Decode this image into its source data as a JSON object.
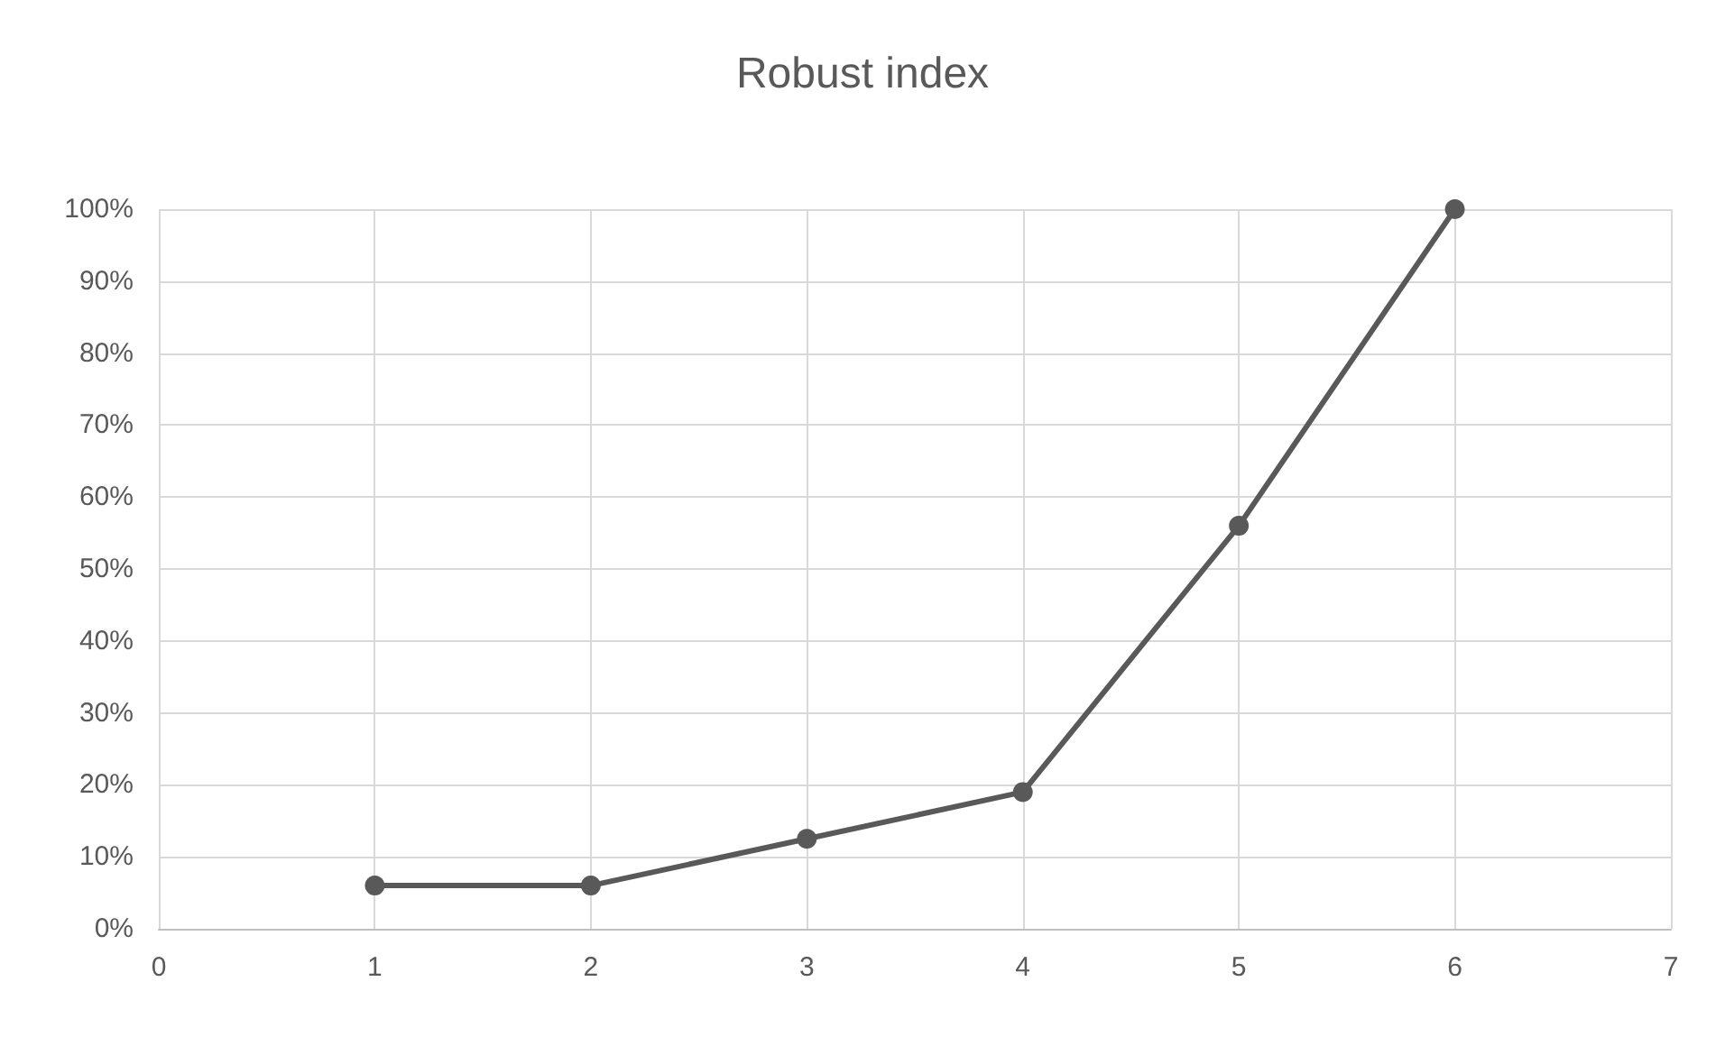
{
  "chart_data": {
    "type": "line",
    "title": "Robust index",
    "x": [
      1,
      2,
      3,
      4,
      5,
      6
    ],
    "series": [
      {
        "color": "#595959",
        "values": [
          6,
          6,
          12.5,
          19,
          56,
          100
        ]
      }
    ],
    "xlim": [
      0,
      7
    ],
    "xticks": [
      0,
      1,
      2,
      3,
      4,
      5,
      6,
      7
    ],
    "ylim": [
      0,
      100
    ],
    "yticks": [
      {
        "value": 0,
        "label": "0%"
      },
      {
        "value": 10,
        "label": "10%"
      },
      {
        "value": 20,
        "label": "20%"
      },
      {
        "value": 30,
        "label": "30%"
      },
      {
        "value": 40,
        "label": "40%"
      },
      {
        "value": 50,
        "label": "50%"
      },
      {
        "value": 60,
        "label": "60%"
      },
      {
        "value": 70,
        "label": "70%"
      },
      {
        "value": 80,
        "label": "80%"
      },
      {
        "value": 90,
        "label": "90%"
      },
      {
        "value": 100,
        "label": "100%"
      }
    ],
    "grid": true,
    "marker": "circle",
    "line_style": "solid"
  }
}
